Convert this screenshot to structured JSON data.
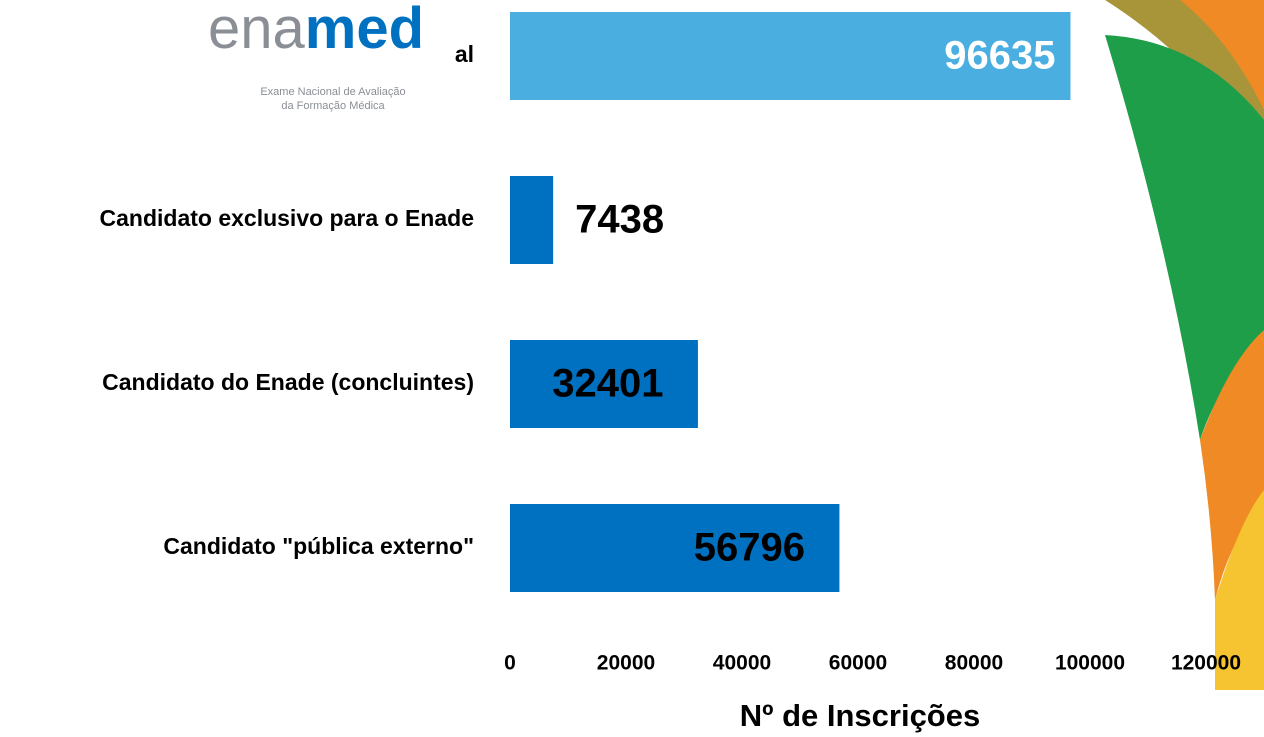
{
  "logo": {
    "part_a": "ena",
    "part_b": "med",
    "tagline": [
      "Exame Nacional de Avaliação",
      "da Formação Médica"
    ]
  },
  "chart_data": {
    "type": "barh",
    "categories": [
      "al",
      "Candidato exclusivo para o Enade",
      "Candidato do Enade (concluintes)",
      "Candidato \"pública externo\""
    ],
    "values": [
      96635,
      7438,
      32401,
      56796
    ],
    "colors": [
      "#4aaee0",
      "#0070c0",
      "#0070c0",
      "#0070c0"
    ],
    "xlim": [
      0,
      120000
    ],
    "xticks": [
      0,
      20000,
      40000,
      60000,
      80000,
      100000,
      120000
    ],
    "xlabel": "Nº de Inscrições",
    "grid": false
  }
}
